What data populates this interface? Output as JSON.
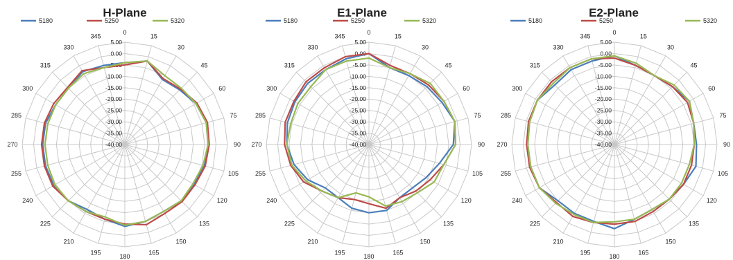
{
  "chart_data": [
    {
      "type": "line",
      "polar": true,
      "title": "H-Plane",
      "angles": [
        0,
        15,
        30,
        45,
        60,
        75,
        90,
        105,
        120,
        135,
        150,
        165,
        180,
        195,
        210,
        225,
        240,
        255,
        270,
        285,
        300,
        315,
        330,
        345
      ],
      "rlim": [
        -40,
        5
      ],
      "radial_ticks": [
        "5.00",
        "0.00",
        "-5.00",
        "-10.00",
        "-15.00",
        "-20.00",
        "-25.00",
        "-30.00",
        "-35.00",
        "-40.00"
      ],
      "legend_position": "top",
      "series": [
        {
          "name": "5180",
          "color": "#4a7ebb",
          "values": [
            -4,
            -2,
            -7,
            -6,
            -4,
            -3,
            -3.5,
            -4,
            -5,
            -5,
            -6,
            -5,
            -4,
            -6,
            -7,
            -5,
            -4,
            -4,
            -4,
            -4,
            -5,
            -5,
            -3,
            -4
          ]
        },
        {
          "name": "5250",
          "color": "#be4b48",
          "values": [
            -5,
            -2,
            -6.5,
            -5.5,
            -3.5,
            -2.5,
            -3,
            -3.5,
            -4.5,
            -4.5,
            -5,
            -3.5,
            -5,
            -6,
            -6,
            -5,
            -3.5,
            -3.5,
            -3.5,
            -3.5,
            -4,
            -4.5,
            -2.5,
            -5
          ]
        },
        {
          "name": "5320",
          "color": "#98b954",
          "values": [
            -4,
            -2,
            -5,
            -5,
            -4,
            -3,
            -3.5,
            -4.5,
            -5.5,
            -5,
            -6,
            -5,
            -4.5,
            -7,
            -6,
            -5,
            -4.5,
            -5,
            -5,
            -5,
            -5,
            -5,
            -4,
            -5
          ]
        }
      ]
    },
    {
      "type": "line",
      "polar": true,
      "title": "E1-Plane",
      "angles": [
        0,
        15,
        30,
        45,
        60,
        75,
        90,
        105,
        120,
        135,
        150,
        165,
        180,
        195,
        210,
        225,
        240,
        255,
        270,
        285,
        300,
        315,
        330,
        345
      ],
      "rlim": [
        -40,
        5
      ],
      "radial_ticks": [
        "5.00",
        "0.00",
        "-5.00",
        "-10.00",
        "-15.00",
        "-20.00",
        "-25.00",
        "-30.00",
        "-35.00",
        "-40.00"
      ],
      "legend_position": "top",
      "series": [
        {
          "name": "5180",
          "color": "#4a7ebb",
          "values": [
            0,
            -5,
            -5,
            -4,
            -3,
            -1,
            -3,
            -8,
            -11,
            -13,
            -13,
            -10,
            -10,
            -11,
            -13,
            -13,
            -9,
            -6,
            -4,
            -3,
            -2.5,
            -2,
            -2,
            -1
          ]
        },
        {
          "name": "5250",
          "color": "#be4b48",
          "values": [
            0,
            -4,
            -4,
            -3,
            -2,
            -1,
            -2,
            -6,
            -9,
            -11,
            -13,
            -11,
            -14,
            -15,
            -13,
            -11,
            -7,
            -4.5,
            -3,
            -2,
            -2,
            -1,
            -1,
            0
          ]
        },
        {
          "name": "5320",
          "color": "#98b954",
          "values": [
            -2,
            -5,
            -4,
            -2,
            -2,
            -1,
            -2,
            -6,
            -7,
            -10,
            -11,
            -12,
            -17,
            -18,
            -13,
            -11,
            -8,
            -5,
            -4,
            -4.5,
            -4,
            -4,
            -2,
            -2
          ]
        }
      ]
    },
    {
      "type": "line",
      "polar": true,
      "title": "E2-Plane",
      "angles": [
        0,
        15,
        30,
        45,
        60,
        75,
        90,
        105,
        120,
        135,
        150,
        165,
        180,
        195,
        210,
        225,
        240,
        255,
        270,
        285,
        300,
        315,
        330,
        345
      ],
      "rlim": [
        -40,
        5
      ],
      "radial_ticks": [
        "5.00",
        "0.00",
        "-5.00",
        "-10.00",
        "-15.00",
        "-20.00",
        "-25.00",
        "-30.00",
        "-35.00",
        "-40.00"
      ],
      "legend_position": "top",
      "series": [
        {
          "name": "5180",
          "color": "#4a7ebb",
          "values": [
            -1,
            -4,
            -5,
            -4,
            -2,
            -4,
            -4,
            -3,
            -5,
            -6,
            -7,
            -6,
            -3,
            -5,
            -5,
            -5,
            -2,
            -2,
            -2,
            -1.5,
            -1,
            -3,
            -2,
            -2
          ]
        },
        {
          "name": "5250",
          "color": "#be4b48",
          "values": [
            -2,
            -4,
            -5,
            -4,
            -3,
            -4,
            -5,
            -5,
            -5,
            -6,
            -6,
            -5,
            -5,
            -4.5,
            -3.5,
            -4,
            -2,
            -1.5,
            -1.5,
            -1,
            -1,
            -1,
            -1,
            -1
          ]
        },
        {
          "name": "5320",
          "color": "#98b954",
          "values": [
            -1,
            -3,
            -5,
            -3,
            -2,
            -4,
            -5,
            -6,
            -6,
            -6,
            -7,
            -6,
            -6,
            -4.5,
            -4.5,
            -3.5,
            -2,
            -2,
            -2,
            -1.5,
            -1,
            -2,
            -1,
            -1
          ]
        }
      ]
    }
  ]
}
